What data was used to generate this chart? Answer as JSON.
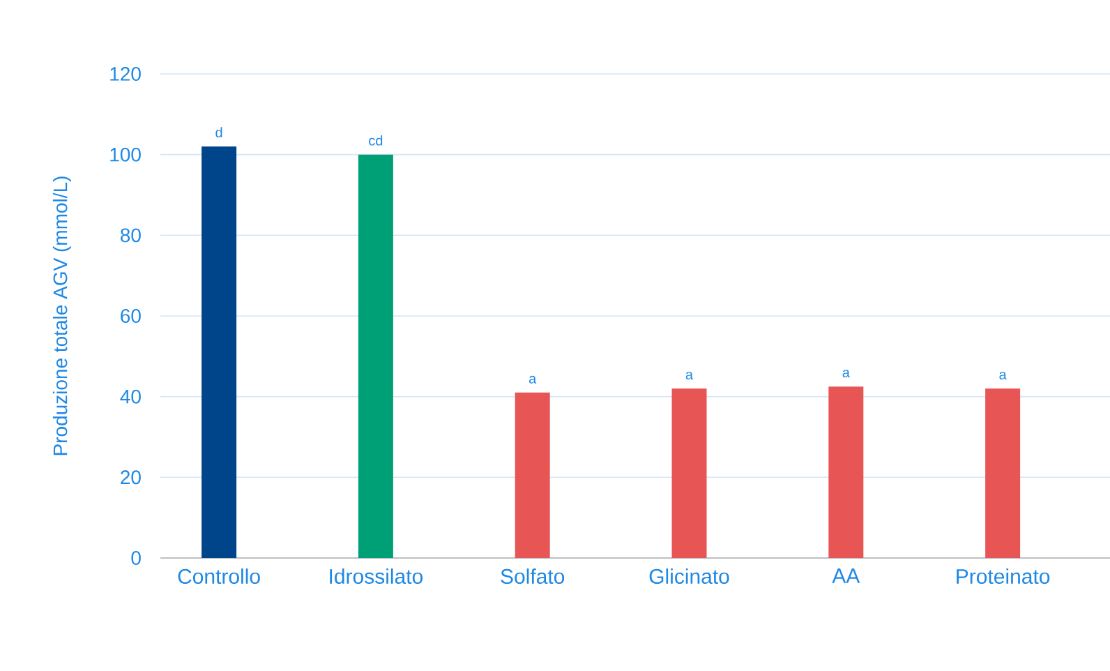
{
  "chart_data": {
    "type": "bar",
    "ylabel": "Produzione totale AGV (mmol/L)",
    "categories": [
      "Controllo",
      "Idrossilato",
      "Solfato",
      "Glicinato",
      "AA",
      "Proteinato"
    ],
    "values": [
      102,
      100,
      41,
      42,
      42.5,
      42
    ],
    "colors": [
      "#00448a",
      "#00a077",
      "#e85555",
      "#e85555",
      "#e85555",
      "#e85555"
    ],
    "ylim": [
      0,
      120
    ],
    "yticks": [
      0,
      20,
      40,
      60,
      80,
      100,
      120
    ],
    "grid": "y",
    "annotations": [
      {
        "text": "d",
        "x": "Controllo",
        "y": 102
      },
      {
        "text": "cd",
        "x": "Idrossilato",
        "y": 100
      },
      {
        "text": "a",
        "x": "Solfato",
        "y": 41
      },
      {
        "text": "a",
        "x": "Glicinato",
        "y": 42
      },
      {
        "text": "a",
        "x": "AA",
        "y": 42.5
      },
      {
        "text": "a",
        "x": "Proteinato",
        "y": 42
      }
    ]
  }
}
